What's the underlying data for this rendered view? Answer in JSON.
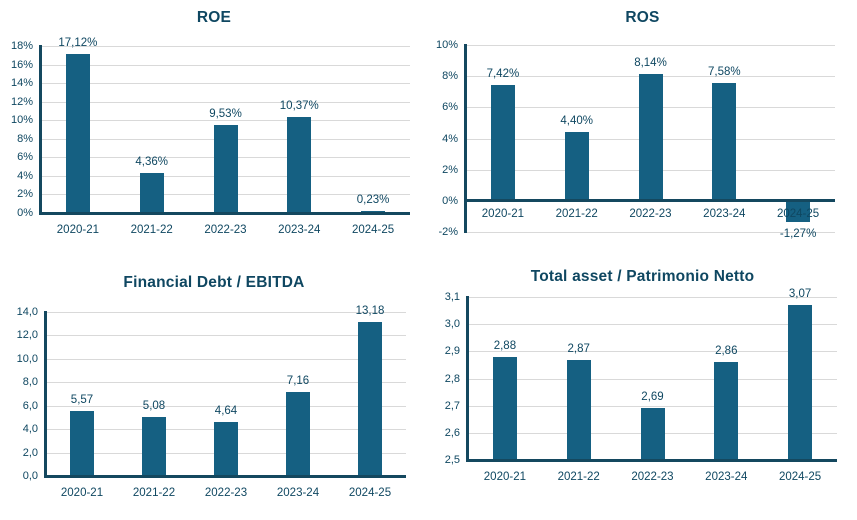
{
  "page": {
    "background": "#FFFFFF"
  },
  "colors": {
    "bar": "#156082",
    "text": "#0F4761",
    "title": "#0F4761",
    "grid": "#D9D9D9",
    "axis": "#14485F",
    "background": "#FFFFFF"
  },
  "chart_data": [
    {
      "id": "roe",
      "type": "bar",
      "title": "ROE",
      "categories": [
        "2020-21",
        "2021-22",
        "2022-23",
        "2023-24",
        "2024-25"
      ],
      "values": [
        17.12,
        4.36,
        9.53,
        10.37,
        0.23
      ],
      "value_labels": [
        "17,12%",
        "4,36%",
        "9,53%",
        "10,37%",
        "0,23%"
      ],
      "ylim": [
        0,
        18
      ],
      "yticks": [
        {
          "v": 0,
          "label": "0%"
        },
        {
          "v": 2,
          "label": "2%"
        },
        {
          "v": 4,
          "label": "4%"
        },
        {
          "v": 6,
          "label": "6%"
        },
        {
          "v": 8,
          "label": "8%"
        },
        {
          "v": 10,
          "label": "10%"
        },
        {
          "v": 12,
          "label": "12%"
        },
        {
          "v": 14,
          "label": "14%"
        },
        {
          "v": 16,
          "label": "16%"
        },
        {
          "v": 18,
          "label": "18%"
        }
      ],
      "grid": true,
      "legend": "none",
      "xlabel": "",
      "ylabel": ""
    },
    {
      "id": "ros",
      "type": "bar",
      "title": "ROS",
      "categories": [
        "2020-21",
        "2021-22",
        "2022-23",
        "2023-24",
        "2024-25"
      ],
      "values": [
        7.42,
        4.4,
        8.14,
        7.58,
        -1.27
      ],
      "value_labels": [
        "7,42%",
        "4,40%",
        "8,14%",
        "7,58%",
        "-1,27%"
      ],
      "ylim": [
        -2,
        10
      ],
      "yticks": [
        {
          "v": -2,
          "label": "-2%"
        },
        {
          "v": 0,
          "label": "0%"
        },
        {
          "v": 2,
          "label": "2%"
        },
        {
          "v": 4,
          "label": "4%"
        },
        {
          "v": 6,
          "label": "6%"
        },
        {
          "v": 8,
          "label": "8%"
        },
        {
          "v": 10,
          "label": "10%"
        }
      ],
      "grid": true,
      "legend": "none",
      "xlabel": "",
      "ylabel": ""
    },
    {
      "id": "financial-debt-ebitda",
      "type": "bar",
      "title": "Financial Debt / EBITDA",
      "categories": [
        "2020-21",
        "2021-22",
        "2022-23",
        "2023-24",
        "2024-25"
      ],
      "values": [
        5.57,
        5.08,
        4.64,
        7.16,
        13.18
      ],
      "value_labels": [
        "5,57",
        "5,08",
        "4,64",
        "7,16",
        "13,18"
      ],
      "ylim": [
        0,
        14
      ],
      "yticks": [
        {
          "v": 0,
          "label": "0,0"
        },
        {
          "v": 2,
          "label": "2,0"
        },
        {
          "v": 4,
          "label": "4,0"
        },
        {
          "v": 6,
          "label": "6,0"
        },
        {
          "v": 8,
          "label": "8,0"
        },
        {
          "v": 10,
          "label": "10,0"
        },
        {
          "v": 12,
          "label": "12,0"
        },
        {
          "v": 14,
          "label": "14,0"
        }
      ],
      "grid": true,
      "legend": "none",
      "xlabel": "",
      "ylabel": ""
    },
    {
      "id": "total-asset-patrimonio-netto",
      "type": "bar",
      "title": "Total asset /  Patrimonio Netto",
      "categories": [
        "2020-21",
        "2021-22",
        "2022-23",
        "2023-24",
        "2024-25"
      ],
      "values": [
        2.88,
        2.87,
        2.69,
        2.86,
        3.07
      ],
      "value_labels": [
        "2,88",
        "2,87",
        "2,69",
        "2,86",
        "3,07"
      ],
      "ylim": [
        2.5,
        3.1
      ],
      "yticks": [
        {
          "v": 2.5,
          "label": "2,5"
        },
        {
          "v": 2.6,
          "label": "2,6"
        },
        {
          "v": 2.7,
          "label": "2,7"
        },
        {
          "v": 2.8,
          "label": "2,8"
        },
        {
          "v": 2.9,
          "label": "2,9"
        },
        {
          "v": 3.0,
          "label": "3,0"
        },
        {
          "v": 3.1,
          "label": "3,1"
        }
      ],
      "grid": true,
      "legend": "none",
      "xlabel": "",
      "ylabel": ""
    }
  ]
}
